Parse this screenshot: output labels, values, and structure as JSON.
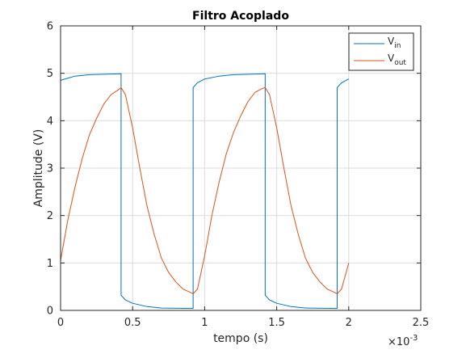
{
  "chart_data": {
    "type": "line",
    "title": "Filtro Acoplado",
    "xlabel": "tempo (s)",
    "ylabel": "Amplitude (V)",
    "x_exponent_label": "×10",
    "x_exponent_power": "-3",
    "xlim": [
      0,
      0.0025
    ],
    "ylim": [
      0,
      6
    ],
    "x_ticks": [
      0,
      0.0005,
      0.001,
      0.0015,
      0.002,
      0.0025
    ],
    "x_tick_labels": [
      "0",
      "0.5",
      "1",
      "1.5",
      "2",
      "2.5"
    ],
    "y_ticks": [
      0,
      1,
      2,
      3,
      4,
      5,
      6
    ],
    "y_tick_labels": [
      "0",
      "1",
      "2",
      "3",
      "4",
      "5",
      "6"
    ],
    "grid": true,
    "legend_position": "top-right",
    "series": [
      {
        "name": "V",
        "name_sub": "in",
        "color": "#0072BD",
        "x": [
          0,
          3e-05,
          0.0001,
          0.0002,
          0.0003,
          0.00042,
          0.00042,
          0.00045,
          0.0005,
          0.0006,
          0.0007,
          0.00092,
          0.00092,
          0.00095,
          0.001,
          0.0011,
          0.0012,
          0.0013,
          0.00142,
          0.00142,
          0.00145,
          0.0015,
          0.0016,
          0.0017,
          0.00192,
          0.00192,
          0.00195,
          0.002
        ],
        "y": [
          4.85,
          4.88,
          4.94,
          4.97,
          4.98,
          4.99,
          0.32,
          0.22,
          0.15,
          0.08,
          0.05,
          0.04,
          4.7,
          4.8,
          4.88,
          4.94,
          4.97,
          4.98,
          4.99,
          0.32,
          0.22,
          0.15,
          0.08,
          0.05,
          0.04,
          4.7,
          4.8,
          4.88
        ]
      },
      {
        "name": "V",
        "name_sub": "out",
        "color": "#D95319",
        "x": [
          0,
          5e-05,
          0.0001,
          0.00015,
          0.0002,
          0.00025,
          0.0003,
          0.00035,
          0.0004,
          0.00042,
          0.00045,
          0.0005,
          0.00055,
          0.0006,
          0.00065,
          0.0007,
          0.00075,
          0.0008,
          0.00085,
          0.0009,
          0.00092,
          0.00095,
          0.001,
          0.00105,
          0.0011,
          0.00115,
          0.0012,
          0.00125,
          0.0013,
          0.00135,
          0.0014,
          0.00142,
          0.00145,
          0.0015,
          0.00155,
          0.0016,
          0.00165,
          0.0017,
          0.00175,
          0.0018,
          0.00185,
          0.0019,
          0.00192,
          0.00195,
          0.002
        ],
        "y": [
          1.05,
          1.9,
          2.6,
          3.2,
          3.7,
          4.05,
          4.35,
          4.55,
          4.65,
          4.7,
          4.55,
          3.85,
          3.0,
          2.2,
          1.6,
          1.1,
          0.8,
          0.6,
          0.45,
          0.38,
          0.35,
          0.45,
          1.15,
          2.0,
          2.7,
          3.3,
          3.75,
          4.1,
          4.4,
          4.6,
          4.68,
          4.7,
          4.55,
          3.85,
          3.0,
          2.2,
          1.6,
          1.1,
          0.8,
          0.6,
          0.45,
          0.38,
          0.35,
          0.45,
          1.0
        ]
      }
    ]
  }
}
